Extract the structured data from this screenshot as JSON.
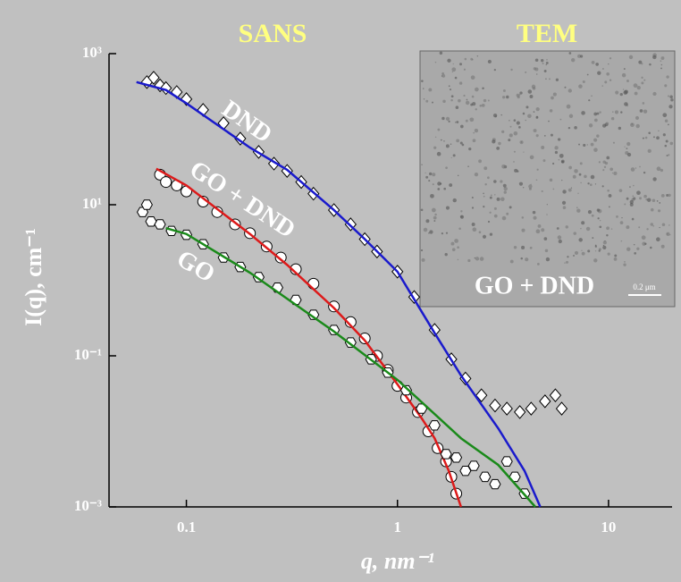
{
  "chart_data": {
    "type": "scatter",
    "title": "SANS",
    "inset_title": "TEM",
    "inset_label": "GO + DND",
    "scale_bar": "0.2 μm",
    "x_label": "q, nm⁻¹",
    "y_label": "I(q), cm⁻¹",
    "xlog": true,
    "ylog": true,
    "xlim": [
      0.043,
      20
    ],
    "ylim": [
      0.001,
      1000
    ],
    "xticks": [
      0.1,
      1,
      10
    ],
    "yticks": [
      {
        "value": 1000,
        "label": "10³"
      },
      {
        "value": 10,
        "label": "10¹"
      },
      {
        "value": 0.1,
        "label": "10⁻¹"
      },
      {
        "value": 0.001,
        "label": "10⁻³"
      }
    ],
    "series": [
      {
        "name": "DND",
        "marker": "diamond",
        "color": "#ffffff",
        "x": [
          0.065,
          0.07,
          0.075,
          0.08,
          0.09,
          0.1,
          0.12,
          0.15,
          0.18,
          0.22,
          0.26,
          0.3,
          0.35,
          0.4,
          0.5,
          0.6,
          0.7,
          0.8,
          1.0,
          1.2,
          1.5,
          1.8,
          2.1,
          2.5,
          2.9,
          3.3,
          3.8,
          4.3,
          5.0,
          5.6,
          6.0
        ],
        "values": [
          420,
          480,
          380,
          350,
          310,
          250,
          180,
          120,
          75,
          50,
          35,
          28,
          20,
          14,
          8.5,
          5.5,
          3.5,
          2.4,
          1.3,
          0.6,
          0.22,
          0.09,
          0.05,
          0.03,
          0.022,
          0.02,
          0.018,
          0.02,
          0.025,
          0.03,
          0.02
        ],
        "fit": {
          "color": "#1a1acc",
          "x": [
            0.058,
            0.08,
            0.1,
            0.15,
            0.2,
            0.3,
            0.5,
            0.7,
            1,
            1.5,
            2,
            3,
            4,
            4.75
          ],
          "values": [
            420,
            330,
            220,
            100,
            57,
            29,
            8.5,
            3.5,
            1.3,
            0.2,
            0.055,
            0.011,
            0.003,
            0.001
          ]
        }
      },
      {
        "name": "GO + DND",
        "marker": "circle",
        "color": "#ffffff",
        "x": [
          0.075,
          0.08,
          0.09,
          0.1,
          0.12,
          0.14,
          0.17,
          0.2,
          0.24,
          0.28,
          0.33,
          0.4,
          0.5,
          0.6,
          0.7,
          0.8,
          0.9,
          1.0,
          1.1,
          1.25,
          1.4,
          1.55,
          1.7,
          1.8,
          1.9
        ],
        "values": [
          25,
          20,
          18,
          15,
          11,
          8,
          5.5,
          4.2,
          2.8,
          2,
          1.4,
          0.9,
          0.45,
          0.28,
          0.17,
          0.1,
          0.065,
          0.04,
          0.028,
          0.018,
          0.01,
          0.006,
          0.004,
          0.0025,
          0.0015
        ],
        "fit": {
          "color": "#dd1a1a",
          "x": [
            0.072,
            0.1,
            0.2,
            0.3,
            0.5,
            0.7,
            1,
            1.3,
            1.5,
            1.75,
            2
          ],
          "values": [
            30,
            18,
            4.1,
            1.6,
            0.43,
            0.16,
            0.042,
            0.015,
            0.0081,
            0.003,
            0.001
          ]
        }
      },
      {
        "name": "GO",
        "marker": "hexagon",
        "color": "#ffffff",
        "x": [
          0.062,
          0.065,
          0.068,
          0.075,
          0.085,
          0.1,
          0.12,
          0.15,
          0.18,
          0.22,
          0.27,
          0.33,
          0.4,
          0.5,
          0.6,
          0.75,
          0.9,
          1.1,
          1.3,
          1.5,
          1.7,
          1.9,
          2.1,
          2.3,
          2.6,
          2.9,
          3.3,
          3.6,
          4.0
        ],
        "values": [
          8,
          10,
          6,
          5.5,
          4.5,
          4,
          3,
          2,
          1.5,
          1.1,
          0.8,
          0.55,
          0.35,
          0.22,
          0.15,
          0.09,
          0.06,
          0.035,
          0.02,
          0.012,
          0.005,
          0.0045,
          0.003,
          0.0035,
          0.0025,
          0.002,
          0.004,
          0.0025,
          0.0015
        ],
        "fit": {
          "color": "#1a8a1a",
          "x": [
            0.08,
            0.1,
            0.2,
            0.5,
            1,
            2,
            3,
            4.5
          ],
          "values": [
            4.9,
            4.1,
            1.26,
            0.21,
            0.048,
            0.0081,
            0.0036,
            0.001
          ]
        }
      }
    ]
  }
}
